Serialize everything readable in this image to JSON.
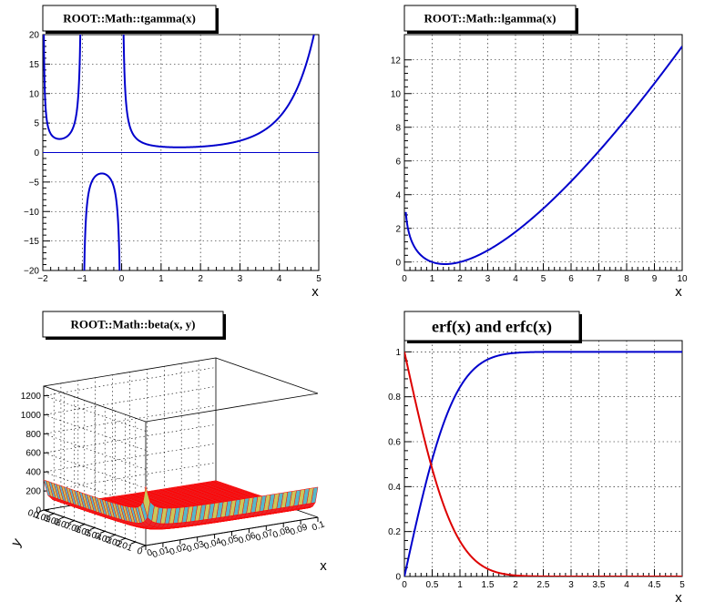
{
  "chart_data": [
    {
      "type": "line",
      "id": "tgamma",
      "title": "ROOT::Math::tgamma(x)",
      "xlabel": "x",
      "ylabel": "",
      "xlim": [
        -2,
        5
      ],
      "ylim": [
        -20,
        20
      ],
      "xticks": [
        -2,
        -1,
        0,
        1,
        2,
        3,
        4,
        5
      ],
      "xtick_labels": [
        "−2",
        "−1",
        "0",
        "1",
        "2",
        "3",
        "4",
        "5"
      ],
      "yticks": [
        -20,
        -15,
        -10,
        -5,
        0,
        5,
        10,
        15,
        20
      ],
      "ytick_labels": [
        "−20",
        "−15",
        "−10",
        "−5",
        "0",
        "5",
        "10",
        "15",
        "20"
      ],
      "grid": true,
      "zero_line": true,
      "series": [
        {
          "name": "tgamma(x)",
          "color": "#0000cc",
          "function": "tgamma",
          "domain": [
            -2,
            5
          ]
        }
      ]
    },
    {
      "type": "line",
      "id": "lgamma",
      "title": "ROOT::Math::lgamma(x)",
      "xlabel": "x",
      "ylabel": "",
      "xlim": [
        0,
        10
      ],
      "ylim": [
        -0.5,
        13.5
      ],
      "xticks": [
        0,
        1,
        2,
        3,
        4,
        5,
        6,
        7,
        8,
        9,
        10
      ],
      "xtick_labels": [
        "0",
        "1",
        "2",
        "3",
        "4",
        "5",
        "6",
        "7",
        "8",
        "9",
        "10"
      ],
      "yticks": [
        0,
        2,
        4,
        6,
        8,
        10,
        12
      ],
      "ytick_labels": [
        "0",
        "2",
        "4",
        "6",
        "8",
        "10",
        "12"
      ],
      "grid": true,
      "series": [
        {
          "name": "lgamma(x)",
          "color": "#0000cc",
          "function": "lgamma",
          "domain": [
            0.05,
            10
          ]
        }
      ]
    },
    {
      "type": "surface",
      "id": "beta",
      "title": "ROOT::Math::beta(x, y)",
      "xlabel": "x",
      "ylabel": "y",
      "xlim": [
        0,
        0.1
      ],
      "ylim": [
        0,
        0.1
      ],
      "zlim": [
        0,
        1300
      ],
      "xtick_labels": [
        "0",
        "0.01",
        "0.02",
        "0.03",
        "0.04",
        "0.05",
        "0.06",
        "0.07",
        "0.08",
        "0.09",
        "0.1"
      ],
      "ytick_labels": [
        "0",
        "0.01",
        "0.02",
        "0.03",
        "0.04",
        "0.05",
        "0.06",
        "0.07",
        "0.08",
        "0.09",
        "0.1"
      ],
      "ztick_labels": [
        "0",
        "200",
        "400",
        "600",
        "800",
        "1000",
        "1200"
      ],
      "zticks": [
        0,
        200,
        400,
        600,
        800,
        1000,
        1200
      ],
      "grid": true,
      "colors": {
        "mesh": "#ff0000",
        "fill_a": "#55b8c8",
        "fill_b": "#c9c85a"
      }
    },
    {
      "type": "line",
      "id": "erf",
      "title": "erf(x) and erfc(x)",
      "xlabel": "x",
      "ylabel": "",
      "xlim": [
        0,
        5
      ],
      "ylim": [
        0,
        1.05
      ],
      "xticks": [
        0,
        0.5,
        1,
        1.5,
        2,
        2.5,
        3,
        3.5,
        4,
        4.5,
        5
      ],
      "xtick_labels": [
        "0",
        "0.5",
        "1",
        "1.5",
        "2",
        "2.5",
        "3",
        "3.5",
        "4",
        "4.5",
        "5"
      ],
      "yticks": [
        0,
        0.2,
        0.4,
        0.6,
        0.8,
        1
      ],
      "ytick_labels": [
        "0",
        "0.2",
        "0.4",
        "0.6",
        "0.8",
        "1"
      ],
      "grid": true,
      "series": [
        {
          "name": "erf(x)",
          "color": "#0000cc",
          "function": "erf",
          "domain": [
            0,
            5
          ]
        },
        {
          "name": "erfc(x)",
          "color": "#dd0000",
          "function": "erfc",
          "domain": [
            0,
            5
          ]
        }
      ]
    }
  ]
}
